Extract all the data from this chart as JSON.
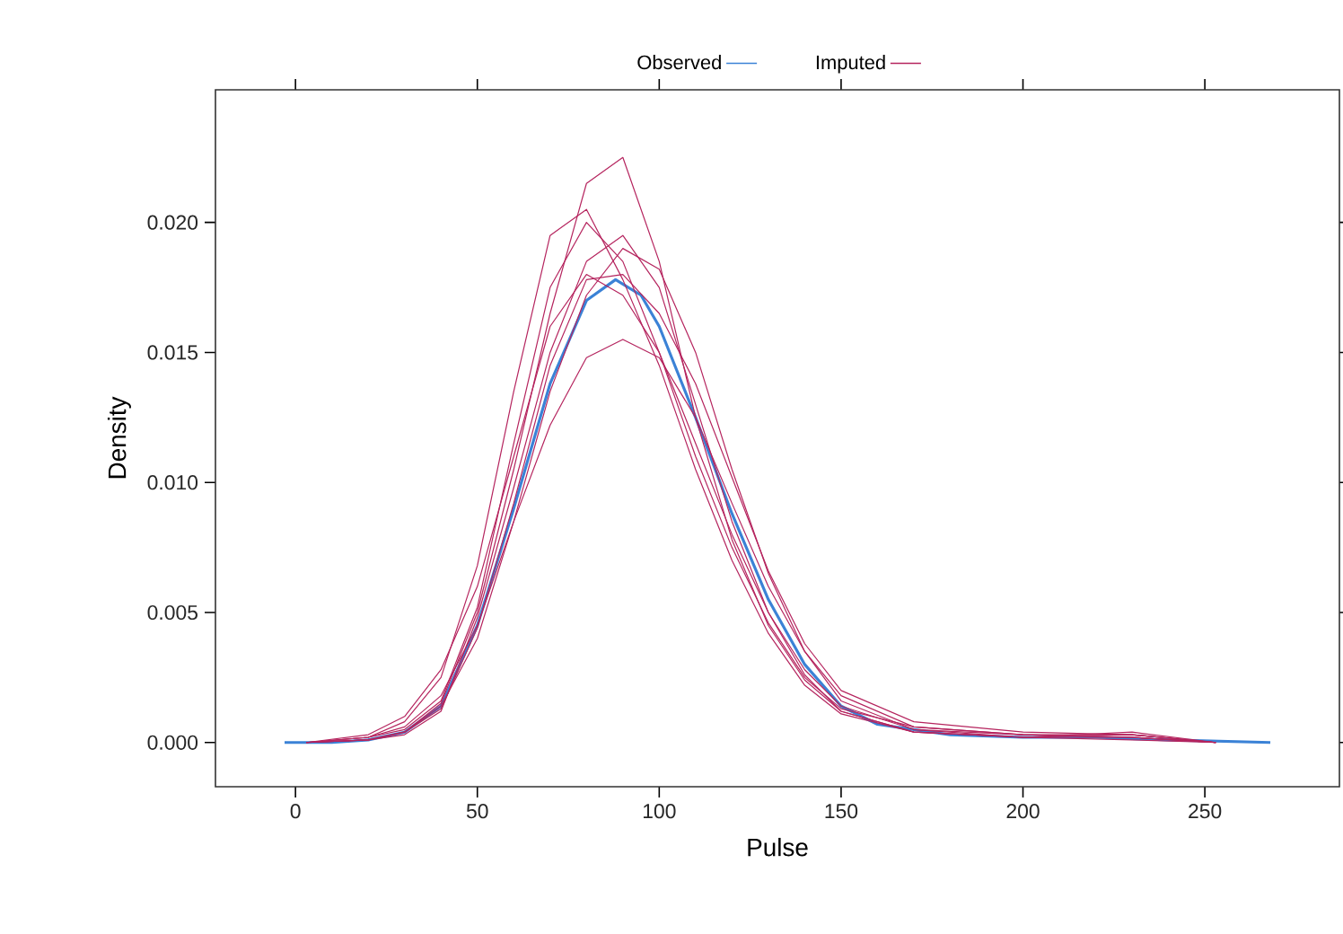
{
  "chart_data": {
    "type": "line",
    "xlabel": "Pulse",
    "ylabel": "Density",
    "legend": "top",
    "xlim": [
      -22,
      287
    ],
    "ylim": [
      -0.0017,
      0.0251
    ],
    "xticks": [
      0,
      50,
      100,
      150,
      200,
      250
    ],
    "yticks": [
      {
        "value": 0,
        "label": "0.000"
      },
      {
        "value": 0.005,
        "label": "0.005"
      },
      {
        "value": 0.01,
        "label": "0.010"
      },
      {
        "value": 0.015,
        "label": "0.015"
      },
      {
        "value": 0.02,
        "label": "0.020"
      }
    ],
    "x": [
      3,
      20,
      30,
      40,
      50,
      60,
      70,
      80,
      90,
      100,
      110,
      120,
      130,
      140,
      150,
      170,
      200,
      230,
      253
    ],
    "series": [
      {
        "name": "Observed",
        "color": "#3b82d6",
        "x": [
          -3,
          10,
          20,
          30,
          40,
          50,
          60,
          70,
          80,
          88,
          95,
          100,
          110,
          120,
          130,
          140,
          150,
          160,
          180,
          200,
          220,
          240,
          268
        ],
        "values": [
          0,
          0,
          0.0001,
          0.0004,
          0.0014,
          0.0045,
          0.009,
          0.0138,
          0.017,
          0.0178,
          0.0172,
          0.016,
          0.0125,
          0.0088,
          0.0055,
          0.003,
          0.0014,
          0.0007,
          0.0003,
          0.0002,
          0.0002,
          0.0001,
          0
        ]
      },
      {
        "name": "Imputed",
        "color": "#b5245e",
        "values": [
          0,
          0.0001,
          0.0004,
          0.0015,
          0.005,
          0.0105,
          0.0165,
          0.0215,
          0.0225,
          0.0185,
          0.0125,
          0.0078,
          0.0045,
          0.0024,
          0.0012,
          0.0004,
          0.0002,
          0.0002,
          0
        ]
      },
      {
        "color": "#b5245e",
        "values": [
          0,
          0.0002,
          0.0008,
          0.0025,
          0.0068,
          0.0135,
          0.0195,
          0.0205,
          0.0178,
          0.0145,
          0.0105,
          0.007,
          0.0042,
          0.0022,
          0.0011,
          0.0004,
          0.0002,
          0.0001,
          0
        ]
      },
      {
        "color": "#b5245e",
        "values": [
          0,
          0.0002,
          0.0006,
          0.0018,
          0.0045,
          0.0085,
          0.0122,
          0.0148,
          0.0155,
          0.0148,
          0.0125,
          0.0092,
          0.006,
          0.0035,
          0.0018,
          0.0006,
          0.0003,
          0.0002,
          0
        ]
      },
      {
        "color": "#b5245e",
        "values": [
          0,
          0.0001,
          0.0003,
          0.0012,
          0.0048,
          0.0098,
          0.015,
          0.0185,
          0.0195,
          0.0175,
          0.013,
          0.0085,
          0.005,
          0.0026,
          0.0012,
          0.0004,
          0.0002,
          0.0003,
          0
        ]
      },
      {
        "color": "#b5245e",
        "values": [
          0,
          0.0003,
          0.001,
          0.0028,
          0.006,
          0.011,
          0.016,
          0.018,
          0.0172,
          0.015,
          0.0115,
          0.008,
          0.005,
          0.0028,
          0.0014,
          0.0005,
          0.0002,
          0.0004,
          0
        ]
      },
      {
        "color": "#b5245e",
        "values": [
          0,
          0.0001,
          0.0004,
          0.0014,
          0.004,
          0.0085,
          0.0135,
          0.0172,
          0.019,
          0.0182,
          0.015,
          0.0105,
          0.0065,
          0.0035,
          0.0016,
          0.0005,
          0.0003,
          0.0003,
          0
        ]
      },
      {
        "color": "#b5245e",
        "values": [
          0,
          0.0002,
          0.0005,
          0.0016,
          0.0052,
          0.0115,
          0.0175,
          0.02,
          0.0185,
          0.015,
          0.011,
          0.0075,
          0.0046,
          0.0025,
          0.0013,
          0.0006,
          0.0003,
          0.0002,
          0
        ]
      },
      {
        "color": "#b5245e",
        "values": [
          0,
          0.0001,
          0.0004,
          0.0013,
          0.0044,
          0.0092,
          0.0145,
          0.0178,
          0.018,
          0.0165,
          0.0138,
          0.0102,
          0.0066,
          0.0038,
          0.002,
          0.0008,
          0.0004,
          0.0003,
          0
        ]
      }
    ]
  }
}
